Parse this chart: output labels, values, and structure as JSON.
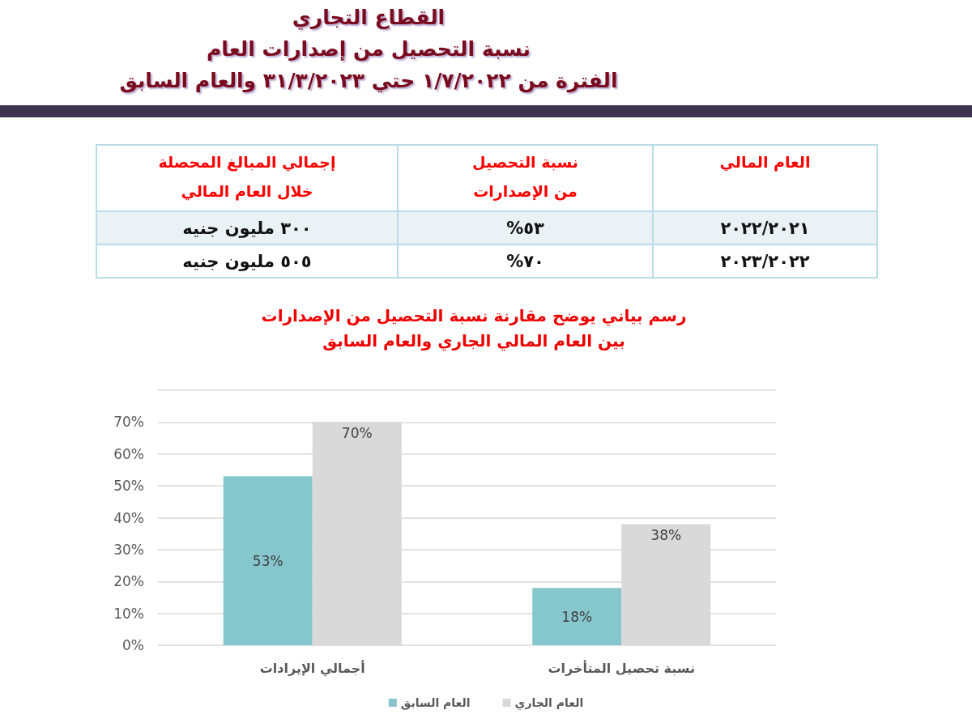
{
  "chart_data": [
    {
      "type": "other",
      "title": "القطاع التجاري\nنسبة التحصيل من إصدارات العام\nالفترة من ١/٧/٢٠٢٢ حتي ٣١/٣/٢٠٢٣ والعام السابق",
      "categories": [
        "العام المالي",
        "نسبة التحصيل\nمن الإصدارات",
        "إجمالي المبالغ المحصلة\nخلال العام المالي"
      ],
      "annotations": [
        "٢٠٢٢/٢٠٢١",
        "٥٣%",
        "٣٠٠ مليون جنيه",
        "٢٠٢٣/٢٠٢٢",
        "٧٠%",
        "٥٠٥ مليون جنيه"
      ]
    },
    {
      "type": "bar",
      "title": "رسم بياني يوضح مقارنة نسبة التحصيل من الإصدارات\nبين العام المالي الجاري والعام السابق",
      "categories": [
        "أجمالي الإيرادات",
        "نسبة تحصيل المتأخرات"
      ],
      "series": [
        {
          "name": "العام السابق",
          "color": "#86c6cd",
          "values": [
            53,
            18
          ],
          "value_labels": [
            "53%",
            "18%"
          ]
        },
        {
          "name": "العام الجاري",
          "color": "#d9d9d9",
          "values": [
            70,
            38
          ],
          "value_labels": [
            "70%",
            "38%"
          ]
        }
      ],
      "ylim": [
        0,
        80
      ],
      "yticks": [
        {
          "value": 0,
          "label": "0%"
        },
        {
          "value": 10,
          "label": "10%"
        },
        {
          "value": 20,
          "label": "20%"
        },
        {
          "value": 30,
          "label": "30%"
        },
        {
          "value": 40,
          "label": "40%"
        },
        {
          "value": 50,
          "label": "50%"
        },
        {
          "value": 60,
          "label": "60%"
        },
        {
          "value": 70,
          "label": "70%"
        },
        {
          "value": 80,
          "label": null
        }
      ],
      "grid": "y",
      "legend": "bottom"
    }
  ]
}
